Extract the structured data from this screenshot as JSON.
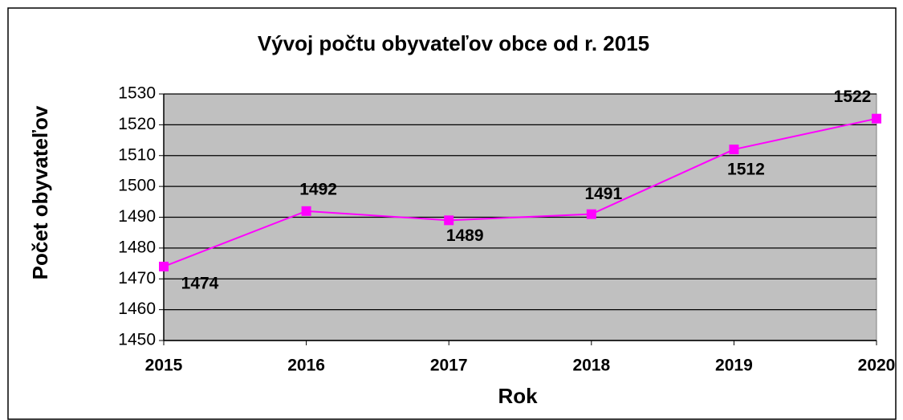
{
  "chart_data": {
    "type": "line",
    "title": "Vývoj počtu obyvateľov obce od r. 2015",
    "x_label": "Rok",
    "y_label": "Počet obyvateľov",
    "x": [
      2015,
      2016,
      2017,
      2018,
      2019,
      2020
    ],
    "xlim": [
      2015,
      2020
    ],
    "xticks": [
      2015,
      2016,
      2017,
      2018,
      2019,
      2020
    ],
    "series": [
      {
        "name": "Počet obyvateľov",
        "color": "#ff00ff",
        "values": [
          1474,
          1492,
          1489,
          1491,
          1512,
          1522
        ]
      }
    ],
    "ylim": [
      1450,
      1530
    ],
    "yticks": [
      1450,
      1460,
      1470,
      1480,
      1490,
      1500,
      1510,
      1520,
      1530
    ],
    "grid": true,
    "background": "#c0c0c0"
  }
}
